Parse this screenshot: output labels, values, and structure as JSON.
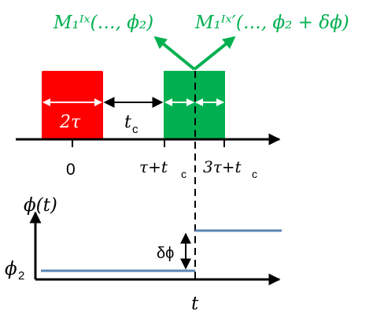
{
  "labels": {
    "pulse_label_left": "M₁ᴵˣ(…, ϕ₂)",
    "pulse_label_right": "M₁ᴵˣ′(…, ϕ₂ + δϕ)",
    "pulse_width": "2τ",
    "gap": "t",
    "gap_sub": "c",
    "tick_zero": "0",
    "tick_mid": "τ+t",
    "tick_mid_sub": "c",
    "tick_right": "3τ+t",
    "tick_right_sub": "c",
    "phase_axis": "ϕ(t)",
    "phase_level": "ϕ",
    "phase_level_sub": "2",
    "delta_phi": "δϕ",
    "time_axis": "t"
  },
  "colors": {
    "red_pulse": "#ff0000",
    "green_pulse": "#00b050",
    "green_text": "#00b050",
    "phase_line": "#5b84b5",
    "axis": "#000000",
    "inner_arrow": "#ffffff"
  },
  "icons": {
    "arrow_heads": "arrowhead"
  }
}
